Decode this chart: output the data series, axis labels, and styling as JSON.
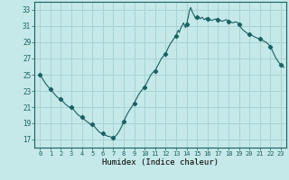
{
  "title": "",
  "xlabel": "Humidex (Indice chaleur)",
  "ylabel": "",
  "bg_color": "#c5e8e8",
  "grid_color": "#a8d4d4",
  "line_color": "#1a6060",
  "marker_color": "#1a6060",
  "xlim": [
    -0.5,
    23.5
  ],
  "ylim": [
    16,
    34
  ],
  "yticks": [
    17,
    19,
    21,
    23,
    25,
    27,
    29,
    31,
    33
  ],
  "xticks": [
    0,
    1,
    2,
    3,
    4,
    5,
    6,
    7,
    8,
    9,
    10,
    11,
    12,
    13,
    14,
    15,
    16,
    17,
    18,
    19,
    20,
    21,
    22,
    23
  ],
  "x": [
    0,
    0.2,
    0.4,
    0.6,
    0.8,
    1,
    1.2,
    1.4,
    1.6,
    1.8,
    2,
    2.2,
    2.4,
    2.6,
    2.8,
    3,
    3.2,
    3.4,
    3.6,
    3.8,
    4,
    4.2,
    4.4,
    4.6,
    4.8,
    5,
    5.2,
    5.4,
    5.6,
    5.8,
    6,
    6.15,
    6.3,
    6.5,
    6.7,
    6.85,
    7,
    7.2,
    7.4,
    7.6,
    7.8,
    8,
    8.2,
    8.4,
    8.6,
    8.8,
    9,
    9.2,
    9.4,
    9.6,
    9.8,
    10,
    10.2,
    10.4,
    10.6,
    10.8,
    11,
    11.2,
    11.4,
    11.6,
    11.8,
    12,
    12.2,
    12.4,
    12.6,
    12.8,
    13,
    13.1,
    13.2,
    13.3,
    13.4,
    13.5,
    13.6,
    13.7,
    13.8,
    13.9,
    14,
    14.1,
    14.2,
    14.3,
    14.4,
    14.5,
    14.6,
    14.7,
    14.8,
    14.9,
    15,
    15.1,
    15.2,
    15.3,
    15.4,
    15.5,
    15.6,
    15.7,
    15.8,
    15.9,
    16,
    16.2,
    16.4,
    16.6,
    16.8,
    17,
    17.2,
    17.4,
    17.6,
    17.8,
    18,
    18.2,
    18.4,
    18.6,
    18.8,
    19,
    19.2,
    19.4,
    19.6,
    19.8,
    20,
    20.3,
    20.6,
    21,
    21.3,
    21.6,
    22,
    22.25,
    22.5,
    22.75,
    23,
    23.3
  ],
  "y": [
    25.0,
    24.6,
    24.2,
    23.8,
    23.5,
    23.2,
    22.9,
    22.6,
    22.3,
    22.1,
    22.0,
    21.7,
    21.4,
    21.2,
    21.0,
    21.0,
    20.7,
    20.4,
    20.1,
    19.9,
    19.8,
    19.5,
    19.3,
    19.1,
    18.9,
    18.9,
    18.6,
    18.3,
    18.0,
    17.8,
    17.8,
    17.6,
    17.5,
    17.4,
    17.35,
    17.3,
    17.25,
    17.4,
    17.7,
    18.1,
    18.6,
    19.2,
    19.8,
    20.3,
    20.7,
    21.1,
    21.5,
    22.0,
    22.5,
    22.9,
    23.2,
    23.5,
    24.0,
    24.5,
    25.0,
    25.3,
    25.5,
    26.0,
    26.5,
    27.0,
    27.3,
    27.6,
    28.2,
    28.7,
    29.1,
    29.5,
    29.8,
    30.2,
    30.5,
    30.2,
    30.6,
    30.9,
    31.1,
    31.4,
    31.1,
    30.8,
    31.2,
    31.8,
    32.4,
    33.0,
    33.3,
    32.9,
    32.6,
    32.4,
    32.1,
    31.9,
    32.1,
    32.2,
    32.1,
    31.9,
    32.0,
    32.1,
    31.9,
    31.8,
    31.9,
    32.0,
    31.9,
    31.8,
    31.7,
    31.8,
    31.9,
    31.8,
    31.7,
    31.6,
    31.7,
    31.8,
    31.6,
    31.5,
    31.4,
    31.5,
    31.5,
    31.2,
    30.8,
    30.5,
    30.3,
    30.1,
    30.0,
    29.8,
    29.6,
    29.4,
    29.2,
    29.0,
    28.5,
    27.8,
    27.1,
    26.6,
    26.2,
    25.9
  ],
  "marker_x": [
    0,
    1,
    2,
    3,
    4,
    5,
    6,
    7,
    8,
    9,
    10,
    11,
    12,
    13,
    14,
    15,
    16,
    17,
    18,
    19,
    20,
    21,
    22,
    23
  ],
  "marker_y": [
    25.0,
    23.2,
    22.0,
    21.0,
    19.8,
    18.9,
    17.8,
    17.25,
    19.2,
    21.5,
    23.5,
    25.5,
    27.6,
    29.8,
    31.2,
    32.1,
    31.9,
    31.8,
    31.6,
    31.2,
    30.0,
    29.4,
    28.5,
    26.2
  ]
}
